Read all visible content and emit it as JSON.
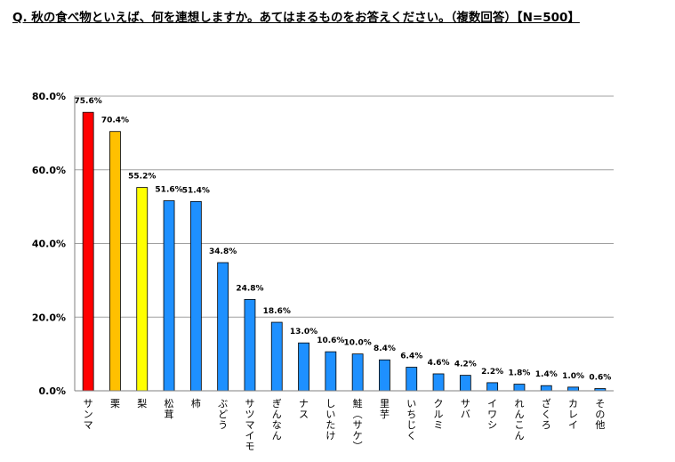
{
  "question": "Q. 秋の食べ物といえば、何を連想しますか。あてはまるものをお答えください。（複数回答）【N=500】",
  "chart_data": {
    "type": "bar",
    "title": "",
    "xlabel": "",
    "ylabel": "",
    "ylim": [
      0,
      80
    ],
    "yticks": [
      "0.0%",
      "20.0%",
      "40.0%",
      "60.0%",
      "80.0%"
    ],
    "grid": true,
    "categories": [
      "サンマ",
      "栗",
      "梨",
      "松茸",
      "柿",
      "ぶどう",
      "サツマイモ",
      "ぎんなん",
      "ナス",
      "しいたけ",
      "鮭（サケ）",
      "里芋",
      "いちじく",
      "クルミ",
      "サバ",
      "イワシ",
      "れんこん",
      "ざくろ",
      "カレイ",
      "その他"
    ],
    "values": [
      75.6,
      70.4,
      55.2,
      51.6,
      51.4,
      34.8,
      24.8,
      18.6,
      13.0,
      10.6,
      10.0,
      8.4,
      6.4,
      4.6,
      4.2,
      2.2,
      1.8,
      1.4,
      1.0,
      0.6
    ],
    "data_labels": [
      "75.6%",
      "70.4%",
      "55.2%",
      "51.6%",
      "51.4%",
      "34.8%",
      "24.8%",
      "18.6%",
      "13.0%",
      "10.6%",
      "10.0%",
      "8.4%",
      "6.4%",
      "4.6%",
      "4.2%",
      "2.2%",
      "1.8%",
      "1.4%",
      "1.0%",
      "0.6%"
    ],
    "bar_colors": [
      "#ff0000",
      "#ffc000",
      "#ffff00",
      "#1e90ff",
      "#1e90ff",
      "#1e90ff",
      "#1e90ff",
      "#1e90ff",
      "#1e90ff",
      "#1e90ff",
      "#1e90ff",
      "#1e90ff",
      "#1e90ff",
      "#1e90ff",
      "#1e90ff",
      "#1e90ff",
      "#1e90ff",
      "#1e90ff",
      "#1e90ff",
      "#1e90ff"
    ]
  }
}
